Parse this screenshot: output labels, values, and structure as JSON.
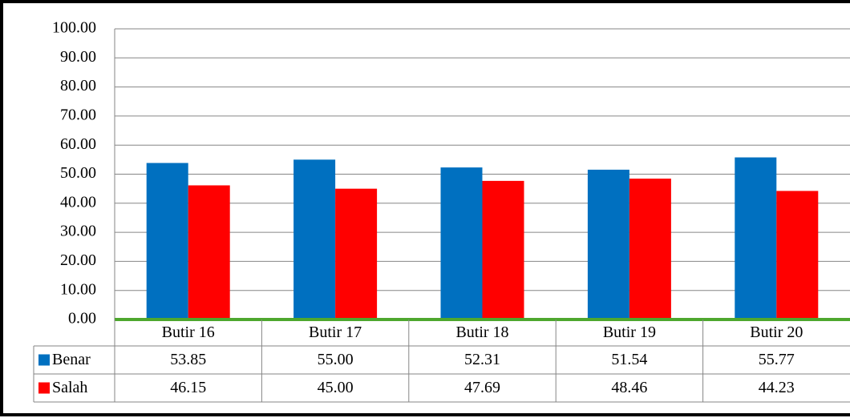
{
  "chart_data": {
    "type": "bar",
    "categories": [
      "Butir 16",
      "Butir 17",
      "Butir 18",
      "Butir 19",
      "Butir 20"
    ],
    "series": [
      {
        "name": "Benar",
        "color": "#0070c0",
        "values": [
          53.85,
          55.0,
          52.31,
          51.54,
          55.77
        ],
        "value_labels": [
          "53.85",
          "55.00",
          "52.31",
          "51.54",
          "55.77"
        ]
      },
      {
        "name": "Salah",
        "color": "#ff0000",
        "values": [
          46.15,
          45.0,
          47.69,
          48.46,
          44.23
        ],
        "value_labels": [
          "46.15",
          "45.00",
          "47.69",
          "48.46",
          "44.23"
        ]
      }
    ],
    "ylim": [
      0,
      100
    ],
    "yticks": [
      {
        "value": 0,
        "label": "0.00"
      },
      {
        "value": 10,
        "label": "10.00"
      },
      {
        "value": 20,
        "label": "20.00"
      },
      {
        "value": 30,
        "label": "30.00"
      },
      {
        "value": 40,
        "label": "40.00"
      },
      {
        "value": 50,
        "label": "50.00"
      },
      {
        "value": 60,
        "label": "60.00"
      },
      {
        "value": 70,
        "label": "70.00"
      },
      {
        "value": 80,
        "label": "80.00"
      },
      {
        "value": 90,
        "label": "90.00"
      },
      {
        "value": 100,
        "label": "100.00"
      }
    ],
    "grid": true,
    "data_table": true
  }
}
